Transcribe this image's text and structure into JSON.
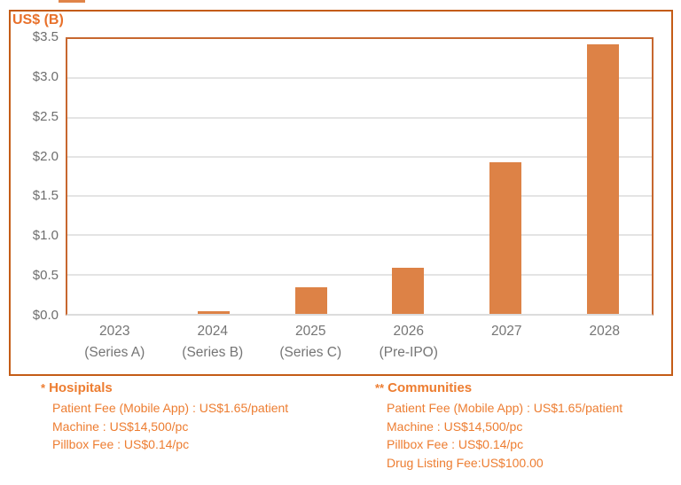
{
  "chart_data": {
    "type": "bar",
    "title": "US$ (B)",
    "ylabel": "US$ (B)",
    "xlabel": "",
    "categories": [
      "2023",
      "2024",
      "2025",
      "2026",
      "2027",
      "2028"
    ],
    "sublabels": [
      "(Series A)",
      "(Series B)",
      "(Series C)",
      "(Pre-IPO)",
      "",
      ""
    ],
    "values": [
      0.0,
      0.03,
      0.34,
      0.59,
      1.93,
      3.43
    ],
    "ylim": [
      0,
      3.5
    ],
    "ytick_values": [
      3.5,
      3.0,
      2.5,
      2.0,
      1.5,
      1.0,
      0.5,
      0.0
    ],
    "ytick_labels": [
      "$3.5",
      "$3.0",
      "$2.5",
      "$2.0",
      "$1.5",
      "$1.0",
      "$0.5",
      "$0.0"
    ],
    "grid": true,
    "legend": "none",
    "bar_color": "#dd8246"
  },
  "footnotes": {
    "hospitals": {
      "marker": "*",
      "title": "Hosipitals",
      "lines": [
        "Patient Fee (Mobile App) : US$1.65/patient",
        "Machine : US$14,500/pc",
        "Pillbox Fee : US$0.14/pc"
      ]
    },
    "communities": {
      "marker": "**",
      "title": "Communities",
      "lines": [
        "Patient Fee (Mobile App) : US$1.65/patient",
        "Machine : US$14,500/pc",
        "Pillbox Fee : US$0.14/pc",
        "Drug Listing Fee:US$100.00"
      ]
    }
  },
  "colors": {
    "bar": "#dd8246",
    "frame_border": "#c45c16",
    "plot_border": "#c7672f",
    "gridline": "#e4e4e4",
    "axis_text": "#6e6e6e",
    "xlabel_text": "#757575",
    "footnote_text": "#ed7d31",
    "title_text": "#e8702a"
  }
}
